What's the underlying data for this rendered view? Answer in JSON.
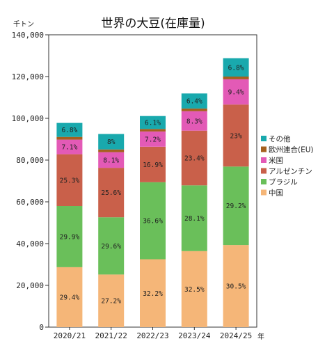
{
  "chart_data": {
    "type": "bar",
    "stacked": true,
    "title": "世界の大豆(在庫量)",
    "ylabel": "千トン",
    "xlabel": "年",
    "ylim": [
      0,
      140000
    ],
    "yticks": [
      0,
      20000,
      40000,
      60000,
      80000,
      100000,
      120000,
      140000
    ],
    "ytick_labels": [
      "0",
      "20,000",
      "40,000",
      "60,000",
      "80,000",
      "100,000",
      "120,000",
      "140,000"
    ],
    "categories": [
      "2020/21",
      "2021/22",
      "2022/23",
      "2023/24",
      "2024/25"
    ],
    "legend_position": "right",
    "grid": false,
    "series": [
      {
        "name": "中国",
        "color": "#f5b678",
        "values": [
          28700,
          25200,
          32500,
          36400,
          39300
        ],
        "labels": [
          "29.4%",
          "27.2%",
          "32.2%",
          "32.5%",
          "30.5%"
        ]
      },
      {
        "name": "ブラジル",
        "color": "#6abf5a",
        "values": [
          29300,
          27400,
          36900,
          31500,
          37600
        ],
        "labels": [
          "29.9%",
          "29.6%",
          "36.6%",
          "28.1%",
          "29.2%"
        ]
      },
      {
        "name": "アルゼンチン",
        "color": "#c9604a",
        "values": [
          24800,
          23700,
          17000,
          26200,
          29700
        ],
        "labels": [
          "25.3%",
          "25.6%",
          "16.9%",
          "23.4%",
          "23%"
        ]
      },
      {
        "name": "米国",
        "color": "#e35ab6",
        "values": [
          7000,
          7500,
          7300,
          9300,
          12100
        ],
        "labels": [
          "7.1%",
          "8.1%",
          "7.2%",
          "8.3%",
          "9.4%"
        ]
      },
      {
        "name": "欧州連合(EU)",
        "color": "#a5601f",
        "values": [
          1300,
          1300,
          1200,
          1300,
          1300
        ],
        "labels": [
          "",
          "",
          "",
          "",
          ""
        ]
      },
      {
        "name": "その他",
        "color": "#19a9ad",
        "values": [
          6700,
          7400,
          6200,
          7200,
          8800
        ],
        "labels": [
          "6.8%",
          "8%",
          "6.1%",
          "6.4%",
          "6.8%"
        ]
      }
    ]
  }
}
